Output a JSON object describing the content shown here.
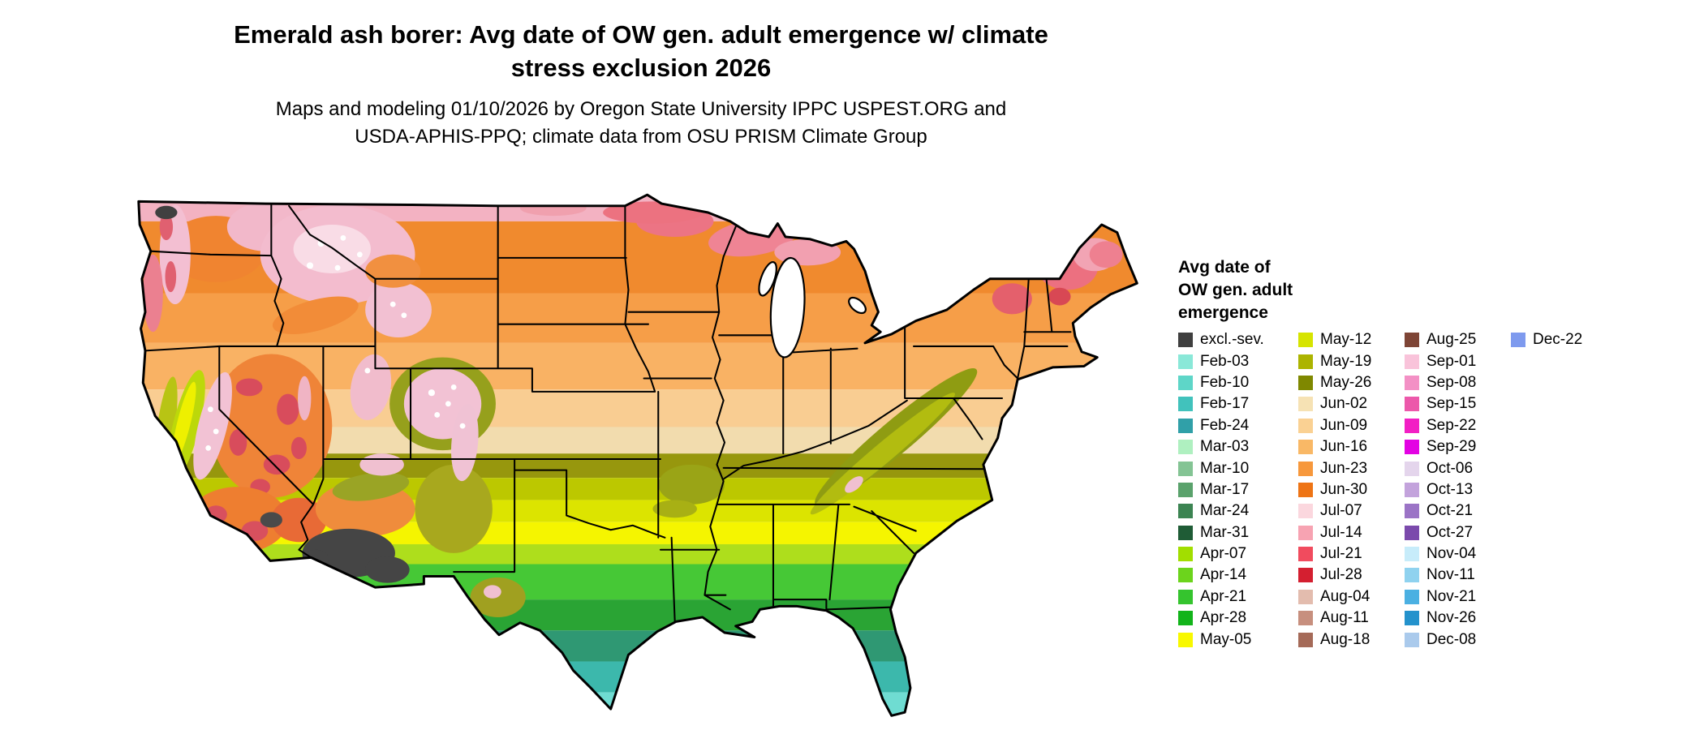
{
  "header": {
    "title_line1": "Emerald ash borer: Avg date of OW gen. adult emergence w/ climate",
    "title_line2": "stress exclusion 2026",
    "subtitle_line1": "Maps and modeling 01/10/2026 by Oregon State University IPPC USPEST.ORG and",
    "subtitle_line2": "USDA-APHIS-PPQ; climate data from OSU PRISM Climate Group"
  },
  "legend": {
    "title_line1": "Avg date of",
    "title_line2": "OW gen. adult",
    "title_line3": "emergence",
    "columns": [
      [
        {
          "label": "excl.-sev.",
          "color": "#3f3f3f"
        },
        {
          "label": "Feb-03",
          "color": "#8ae8d8"
        },
        {
          "label": "Feb-10",
          "color": "#5ed6c8"
        },
        {
          "label": "Feb-17",
          "color": "#41c2bc"
        },
        {
          "label": "Feb-24",
          "color": "#30a0a8"
        },
        {
          "label": "Mar-03",
          "color": "#aff0c0"
        },
        {
          "label": "Mar-10",
          "color": "#84c494"
        },
        {
          "label": "Mar-17",
          "color": "#5aa26c"
        },
        {
          "label": "Mar-24",
          "color": "#3c8452"
        },
        {
          "label": "Mar-31",
          "color": "#1f5c36"
        },
        {
          "label": "Apr-07",
          "color": "#a2de00"
        },
        {
          "label": "Apr-14",
          "color": "#6cd41c"
        },
        {
          "label": "Apr-21",
          "color": "#35c42e"
        },
        {
          "label": "Apr-28",
          "color": "#12b41a"
        },
        {
          "label": "May-05",
          "color": "#f8f800"
        }
      ],
      [
        {
          "label": "May-12",
          "color": "#d6e400"
        },
        {
          "label": "May-19",
          "color": "#acb400"
        },
        {
          "label": "May-26",
          "color": "#7f8800"
        },
        {
          "label": "Jun-02",
          "color": "#f6e2b4"
        },
        {
          "label": "Jun-09",
          "color": "#fad193"
        },
        {
          "label": "Jun-16",
          "color": "#f9b866"
        },
        {
          "label": "Jun-23",
          "color": "#f7983c"
        },
        {
          "label": "Jun-30",
          "color": "#ee7415"
        },
        {
          "label": "Jul-07",
          "color": "#fbd7de"
        },
        {
          "label": "Jul-14",
          "color": "#f7a3b2"
        },
        {
          "label": "Jul-21",
          "color": "#f14b5e"
        },
        {
          "label": "Jul-28",
          "color": "#d41f30"
        },
        {
          "label": "Aug-04",
          "color": "#e3bcae"
        },
        {
          "label": "Aug-11",
          "color": "#c78f7e"
        },
        {
          "label": "Aug-18",
          "color": "#a56a58"
        }
      ],
      [
        {
          "label": "Aug-25",
          "color": "#7e4536"
        },
        {
          "label": "Sep-01",
          "color": "#f9c3da"
        },
        {
          "label": "Sep-08",
          "color": "#f390c5"
        },
        {
          "label": "Sep-15",
          "color": "#ec58aa"
        },
        {
          "label": "Sep-22",
          "color": "#f21fc4"
        },
        {
          "label": "Sep-29",
          "color": "#e303e3"
        },
        {
          "label": "Oct-06",
          "color": "#e4d5ec"
        },
        {
          "label": "Oct-13",
          "color": "#c3a3dc"
        },
        {
          "label": "Oct-21",
          "color": "#9b74c6"
        },
        {
          "label": "Oct-27",
          "color": "#7b4aac"
        },
        {
          "label": "Nov-04",
          "color": "#c7ecfa"
        },
        {
          "label": "Nov-11",
          "color": "#8fd2ef"
        },
        {
          "label": "Nov-21",
          "color": "#4bb0e2"
        },
        {
          "label": "Nov-26",
          "color": "#2492cc"
        },
        {
          "label": "Dec-08",
          "color": "#aacaec"
        }
      ],
      [
        {
          "label": "Dec-22",
          "color": "#7e9aee"
        }
      ]
    ]
  }
}
